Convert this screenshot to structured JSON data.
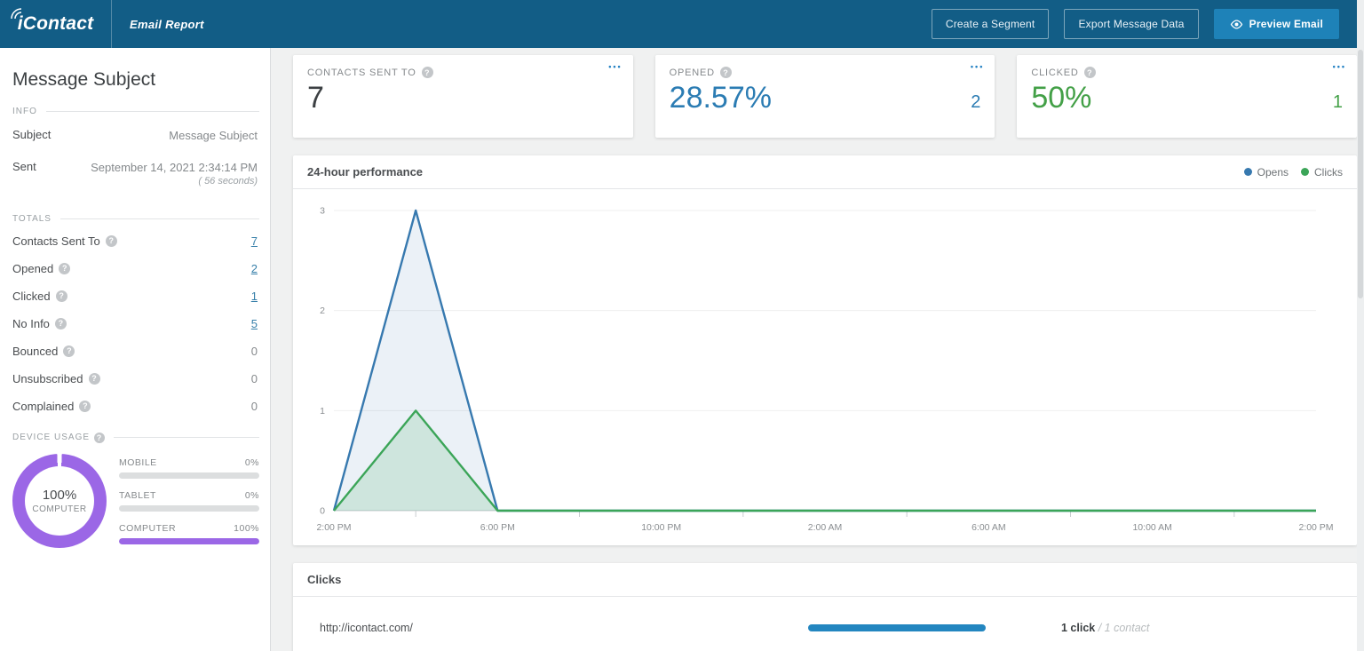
{
  "navbar": {
    "logo_text": "iContact",
    "page_title": "Email Report",
    "create_segment_label": "Create a Segment",
    "export_label": "Export Message Data",
    "preview_label": "Preview Email"
  },
  "sidebar": {
    "title": "Message Subject",
    "info": {
      "label": "INFO",
      "rows": [
        {
          "label": "Subject",
          "value": "Message Subject"
        },
        {
          "label": "Sent",
          "value": "September 14, 2021 2:34:14 PM",
          "note": "( 56 seconds)"
        }
      ]
    },
    "totals": {
      "label": "TOTALS",
      "rows": [
        {
          "label": "Contacts Sent To",
          "value": "7",
          "link": true
        },
        {
          "label": "Opened",
          "value": "2",
          "link": true
        },
        {
          "label": "Clicked",
          "value": "1",
          "link": true
        },
        {
          "label": "No Info",
          "value": "5",
          "link": true
        },
        {
          "label": "Bounced",
          "value": "0",
          "link": false
        },
        {
          "label": "Unsubscribed",
          "value": "0",
          "link": false
        },
        {
          "label": "Complained",
          "value": "0",
          "link": false
        }
      ]
    },
    "device_usage": {
      "label": "DEVICE USAGE",
      "donut": {
        "percent": "100%",
        "device": "COMPUTER",
        "pct": 100
      },
      "bars": [
        {
          "label": "MOBILE",
          "value": "0%",
          "pct": 0
        },
        {
          "label": "TABLET",
          "value": "0%",
          "pct": 0
        },
        {
          "label": "COMPUTER",
          "value": "100%",
          "pct": 100
        }
      ]
    }
  },
  "stat_cards": [
    {
      "label": "CONTACTS SENT TO",
      "value": "7",
      "secondary": ""
    },
    {
      "label": "OPENED",
      "value": "28.57%",
      "secondary": "2"
    },
    {
      "label": "CLICKED",
      "value": "50%",
      "secondary": "1"
    }
  ],
  "chart_card": {
    "title": "24-hour performance",
    "legend": [
      {
        "name": "Opens",
        "color": "#3779af"
      },
      {
        "name": "Clicks",
        "color": "#3ba558"
      }
    ]
  },
  "chart_data": {
    "type": "area",
    "title": "24-hour performance",
    "x": [
      "2:00 PM",
      "4:00 PM",
      "6:00 PM",
      "8:00 PM",
      "10:00 PM",
      "12:00 AM",
      "2:00 AM",
      "4:00 AM",
      "6:00 AM",
      "8:00 AM",
      "10:00 AM",
      "12:00 PM",
      "2:00 PM"
    ],
    "x_axis_labels": [
      "2:00 PM",
      "6:00 PM",
      "10:00 PM",
      "2:00 AM",
      "6:00 AM",
      "10:00 AM",
      "2:00 PM"
    ],
    "series": [
      {
        "name": "Opens",
        "color": "#3779af",
        "fill": "rgba(55,121,175,0.10)",
        "values": [
          0,
          3,
          0,
          0,
          0,
          0,
          0,
          0,
          0,
          0,
          0,
          0,
          0
        ]
      },
      {
        "name": "Clicks",
        "color": "#3ba558",
        "fill": "rgba(59,165,88,0.16)",
        "values": [
          0,
          1,
          0,
          0,
          0,
          0,
          0,
          0,
          0,
          0,
          0,
          0,
          0
        ]
      }
    ],
    "y_ticks": [
      0,
      1,
      2,
      3
    ],
    "ylim": [
      0,
      3
    ],
    "grid": true,
    "legend_position": "top-right"
  },
  "clicks_card": {
    "title": "Clicks",
    "rows": [
      {
        "url": "http://icontact.com/",
        "clicks": "1 click",
        "contacts": "/ 1 contact",
        "bar_pct": 100
      }
    ]
  },
  "colors": {
    "navbar": "#125d86",
    "accent_blue": "#2b7cb3",
    "link_blue": "#367fa9",
    "green": "#43a047",
    "purple": "#9b67e6",
    "opens_line": "#3779af",
    "clicks_line": "#3ba558"
  }
}
